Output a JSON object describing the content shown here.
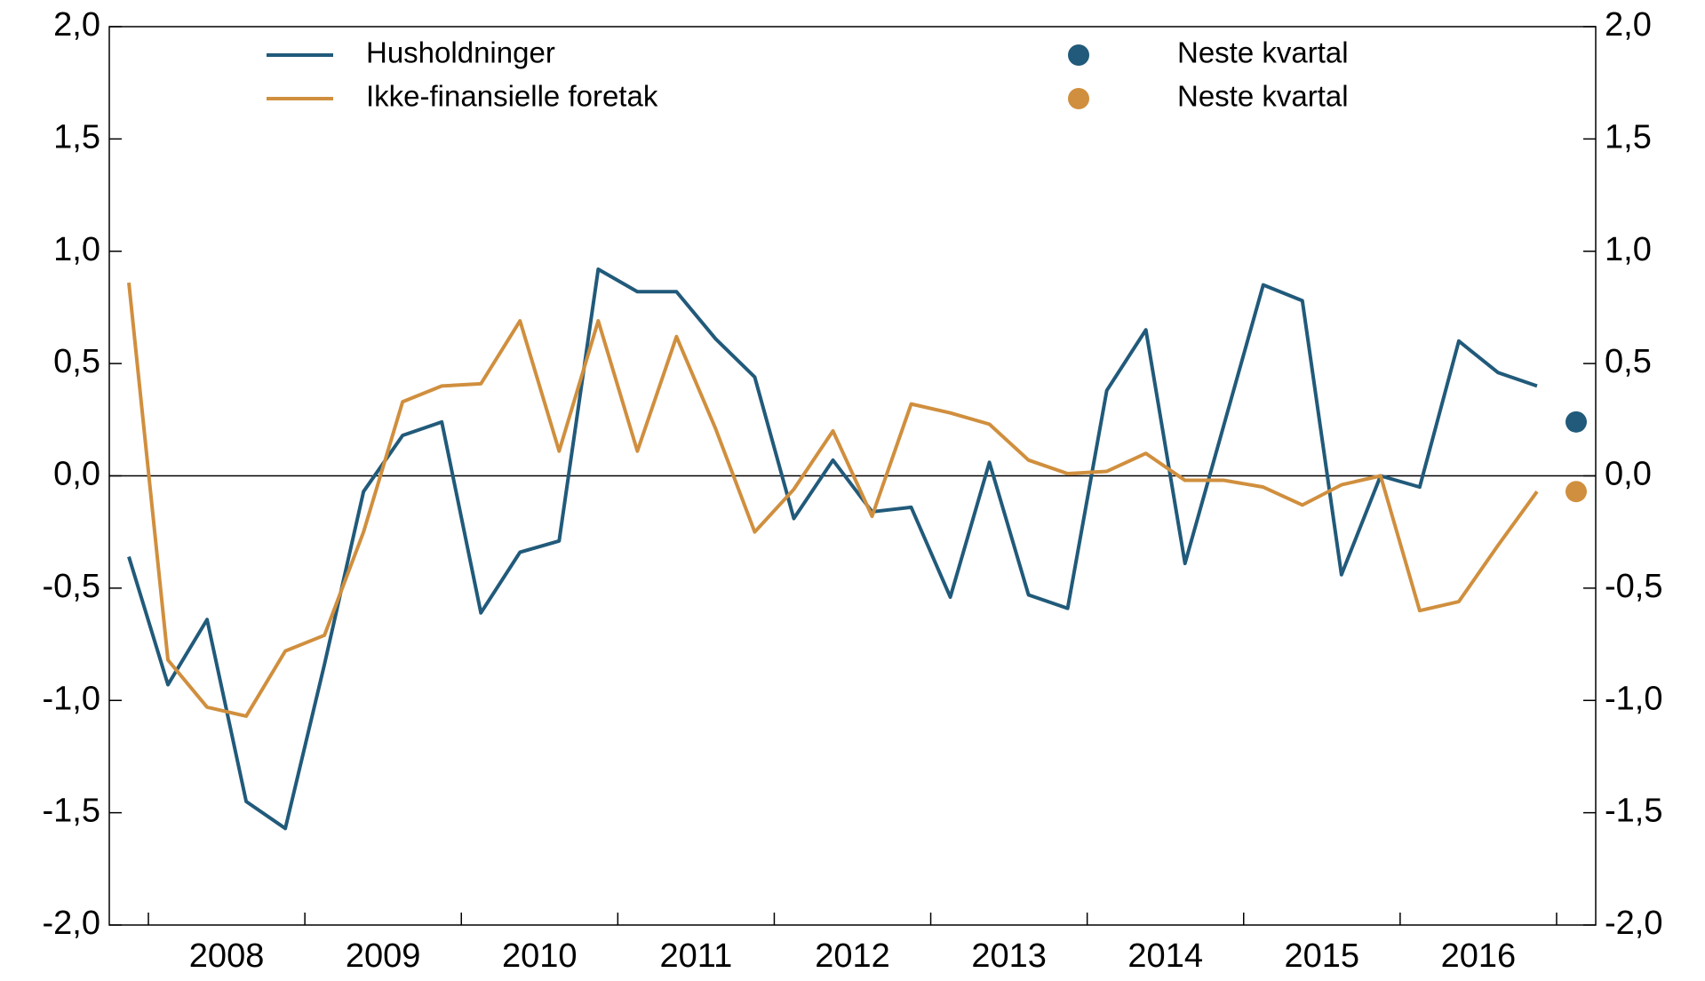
{
  "chart_data": {
    "type": "line",
    "categories": [
      null,
      null,
      null,
      null,
      null,
      null,
      null,
      null,
      null,
      null,
      null,
      null,
      null,
      null,
      null,
      null,
      null,
      null,
      null,
      null,
      null,
      null,
      null,
      null,
      null,
      null,
      null,
      null,
      null,
      null,
      null,
      null,
      null,
      null,
      null,
      null,
      null,
      null
    ],
    "years": [
      "2008",
      "2009",
      "2010",
      "2011",
      "2012",
      "2013",
      "2014",
      "2015",
      "2016"
    ],
    "series": [
      {
        "name": "Husholdninger",
        "color": "#215a7a",
        "style": "line",
        "values": [
          -0.36,
          -0.93,
          -0.64,
          -1.45,
          -1.57,
          -0.84,
          -0.07,
          0.18,
          0.24,
          -0.61,
          -0.34,
          -0.29,
          0.92,
          0.82,
          0.82,
          0.61,
          0.44,
          -0.19,
          0.07,
          -0.16,
          -0.14,
          -0.54,
          0.06,
          -0.53,
          -0.59,
          0.38,
          0.65,
          -0.39,
          0.23,
          0.85,
          0.78,
          -0.44,
          0.0,
          -0.05,
          0.6,
          0.46,
          0.4,
          null
        ]
      },
      {
        "name": "Ikke-finansielle foretak",
        "color": "#d08f3e",
        "style": "line",
        "values": [
          0.86,
          -0.82,
          -1.03,
          -1.07,
          -0.78,
          -0.71,
          -0.25,
          0.33,
          0.4,
          0.41,
          0.69,
          0.11,
          0.69,
          0.11,
          0.62,
          0.21,
          -0.25,
          -0.06,
          0.2,
          -0.18,
          0.32,
          0.28,
          0.23,
          0.07,
          0.01,
          0.02,
          0.1,
          -0.02,
          -0.02,
          -0.05,
          -0.13,
          -0.04,
          0.0,
          -0.6,
          -0.56,
          -0.31,
          -0.07,
          null
        ]
      },
      {
        "name": "Neste kvartal",
        "color": "#215a7a",
        "style": "dot",
        "values": [
          null,
          null,
          null,
          null,
          null,
          null,
          null,
          null,
          null,
          null,
          null,
          null,
          null,
          null,
          null,
          null,
          null,
          null,
          null,
          null,
          null,
          null,
          null,
          null,
          null,
          null,
          null,
          null,
          null,
          null,
          null,
          null,
          null,
          null,
          null,
          null,
          null,
          0.24
        ]
      },
      {
        "name": "Neste kvartal",
        "color": "#d08f3e",
        "style": "dot",
        "values": [
          null,
          null,
          null,
          null,
          null,
          null,
          null,
          null,
          null,
          null,
          null,
          null,
          null,
          null,
          null,
          null,
          null,
          null,
          null,
          null,
          null,
          null,
          null,
          null,
          null,
          null,
          null,
          null,
          null,
          null,
          null,
          null,
          null,
          null,
          null,
          null,
          null,
          -0.07
        ]
      }
    ],
    "ylim": [
      -2,
      2
    ],
    "yticks": [
      {
        "value": -2,
        "label": "-2,0"
      },
      {
        "value": -1.5,
        "label": "-1,5"
      },
      {
        "value": -1,
        "label": "-1,0"
      },
      {
        "value": -0.5,
        "label": "-0,5"
      },
      {
        "value": 0,
        "label": "0,0"
      },
      {
        "value": 0.5,
        "label": "0,5"
      },
      {
        "value": 1,
        "label": "1,0"
      },
      {
        "value": 1.5,
        "label": "1,5"
      },
      {
        "value": 2,
        "label": "2,0"
      }
    ],
    "y2lim": [
      -2,
      2
    ],
    "y2ticks": [
      {
        "value": -2,
        "label": "-2,0"
      },
      {
        "value": -1.5,
        "label": "-1,5"
      },
      {
        "value": -1,
        "label": "-1,0"
      },
      {
        "value": -0.5,
        "label": "-0,5"
      },
      {
        "value": 0,
        "label": "0,0"
      },
      {
        "value": 0.5,
        "label": "0,5"
      },
      {
        "value": 1,
        "label": "1,0"
      },
      {
        "value": 1.5,
        "label": "1,5"
      },
      {
        "value": 2,
        "label": "2,0"
      }
    ]
  }
}
